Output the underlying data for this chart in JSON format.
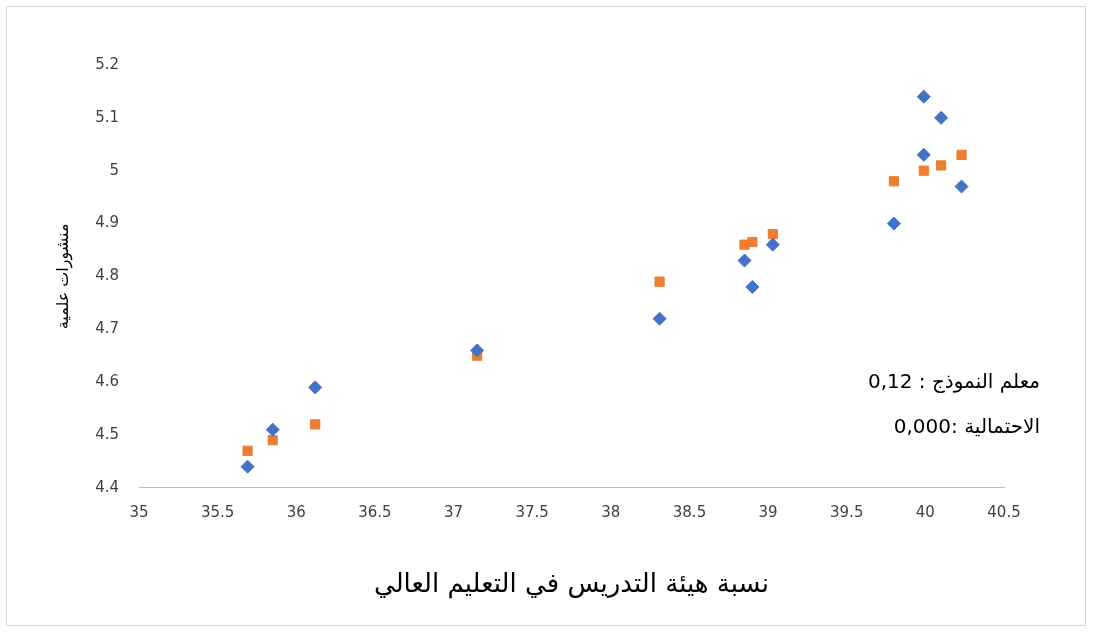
{
  "chart_data": {
    "type": "scatter",
    "xlabel": "نسبة هيئة التدريس في التعليم العالي",
    "ylabel": "منشورات علمية",
    "annotations": [
      "معلم النموذج : 0,12",
      "الاحتمالية :0,000"
    ],
    "xlim": [
      35,
      40.5
    ],
    "xticks": [
      35,
      35.5,
      36,
      36.5,
      37,
      37.5,
      38,
      38.5,
      39,
      39.5,
      40,
      40.5
    ],
    "ylim": [
      4.4,
      5.2
    ],
    "yticks": [
      4.4,
      4.5,
      4.6,
      4.7,
      4.8,
      4.9,
      5,
      5.1,
      5.2
    ],
    "grid": false,
    "legend": false,
    "series": [
      {
        "color": "#4472c4",
        "marker": "diamond",
        "x": [
          35.69,
          35.85,
          36.12,
          37.15,
          38.31,
          38.85,
          38.9,
          39.03,
          39.8,
          39.99,
          39.99,
          40.1,
          40.23
        ],
        "values": [
          4.44,
          4.51,
          4.59,
          4.66,
          4.72,
          4.83,
          4.78,
          4.86,
          4.9,
          5.03,
          5.14,
          5.1,
          4.97
        ]
      },
      {
        "color": "#ed7d31",
        "marker": "square",
        "x": [
          35.69,
          35.85,
          36.12,
          37.15,
          38.31,
          38.85,
          38.9,
          39.03,
          39.8,
          39.99,
          40.1,
          40.23
        ],
        "values": [
          4.47,
          4.49,
          4.52,
          4.65,
          4.79,
          4.86,
          4.865,
          4.88,
          4.98,
          5.0,
          5.01,
          5.03
        ]
      }
    ]
  }
}
